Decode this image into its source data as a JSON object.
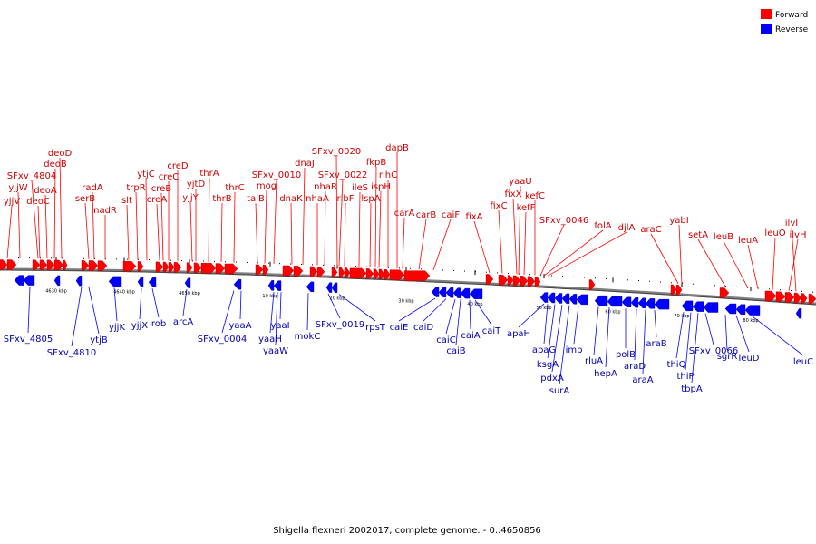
{
  "title": "Shigella flexneri 2002017, complete genome. - 0..4650856",
  "legend": [
    {
      "label": "Forward",
      "color": "#ff0000"
    },
    {
      "label": "Reverse",
      "color": "#0000ff"
    }
  ],
  "colors": {
    "forward": "#ff0000",
    "reverse": "#0000ff",
    "forward_label": "#cc0000",
    "reverse_label": "#0000b0",
    "backbone": "#808080"
  },
  "tick_labels": [
    "4630 kbp",
    "4640 kbp",
    "4650 kbp",
    "10 kbp",
    "20 kbp",
    "30 kbp",
    "40 kbp",
    "50 kbp",
    "60 kbp",
    "70 kbp",
    "80 kbp"
  ],
  "forward_labels": [
    "yjjV",
    "yjjW",
    "SFxv_4804",
    "deoC",
    "deoA",
    "deoB",
    "deoD",
    "serB",
    "radA",
    "nadR",
    "slt",
    "trpR",
    "ytjC",
    "creA",
    "creB",
    "creC",
    "creD",
    "yjjY",
    "yjtD",
    "thrA",
    "thrB",
    "thrC",
    "talB",
    "mog",
    "SFxv_0010",
    "dnaK",
    "dnaJ",
    "nhaA",
    "nhaR",
    "SFxv_0020",
    "ribF",
    "SFxv_0022",
    "ileS",
    "lspA",
    "ispH",
    "fkpB",
    "rihC",
    "dapB",
    "carA",
    "carB",
    "caiF",
    "fixA",
    "fixC",
    "fixX",
    "yaaU",
    "kefF",
    "kefC",
    "SFxv_0046",
    "folA",
    "djlA",
    "araC",
    "yabI",
    "setA",
    "leuB",
    "leuA",
    "leuO",
    "ilvH",
    "ilvI"
  ],
  "reverse_labels": [
    "SFxv_4805",
    "SFxv_4810",
    "ytjB",
    "yjjK",
    "yjjX",
    "rob",
    "arcA",
    "SFxv_0004",
    "yaaA",
    "yaaH",
    "yaaW",
    "yaaI",
    "mokC",
    "SFxv_0019",
    "rpsT",
    "caiE",
    "caiD",
    "caiC",
    "caiB",
    "caiA",
    "caiT",
    "apaH",
    "apaG",
    "ksgA",
    "pdxA",
    "surA",
    "imp",
    "rluA",
    "hepA",
    "polB",
    "araD",
    "araA",
    "araB",
    "thiQ",
    "thiP",
    "tbpA",
    "SFxv_0066",
    "sgrR",
    "leuD",
    "leuC"
  ]
}
